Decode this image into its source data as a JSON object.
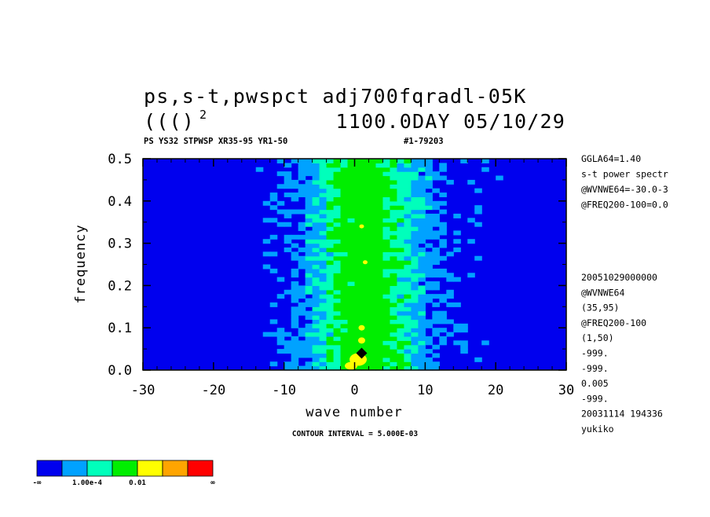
{
  "header": {
    "title_line1": "ps,s-t,pwspct adj700fqradl-05K",
    "title_line2_left": "((()",
    "title_line2_sup": "2",
    "title_line2_right": "1100.0DAY 05/10/29",
    "subtitle_left": "PS YS32 STPWSP XR35-95 YR1-50",
    "subtitle_right": "#1-79203"
  },
  "side_info": {
    "top": [
      "GGLA64=1.40",
      "s-t power spectr",
      "@WVNWE64=-30.0-3",
      "@FREQ200-100=0.0"
    ],
    "bottom": [
      "20051029000000",
      "@WVNWE64",
      "(35,95)",
      "@FREQ200-100",
      "(1,50)",
      "-999.",
      "-999.",
      "0.005",
      "-999.",
      "20031114 194336",
      "yukiko"
    ]
  },
  "footer": {
    "contour_interval": "CONTOUR INTERVAL = 5.000E-03"
  },
  "colors": {
    "level0": "#0000ee",
    "level1": "#00a2ff",
    "level2": "#00ffbb",
    "level3": "#00ee00",
    "level4": "#ffff00",
    "level5": "#ffa500",
    "level6": "#ff0000",
    "max_marker": "#000000"
  },
  "colorbar": {
    "labels": [
      "-∞",
      "1.00e-4",
      "0.01",
      "∞"
    ]
  },
  "chart_data": {
    "type": "heatmap",
    "xlabel": "wave number",
    "ylabel": "frequency",
    "xlim": [
      -30,
      30
    ],
    "ylim": [
      0,
      0.5
    ],
    "xticks": [
      -30,
      -20,
      -10,
      0,
      10,
      20,
      30
    ],
    "xtick_labels": [
      "-30",
      "-20",
      "-10",
      "0",
      "10",
      "20",
      "30"
    ],
    "yticks": [
      0,
      0.1,
      0.2,
      0.3,
      0.4,
      0.5
    ],
    "ytick_labels": [
      "0.0",
      "0.1",
      "0.2",
      "0.3",
      "0.4",
      "0.5"
    ],
    "contour_interval": 0.005,
    "levels": [
      0.0001,
      0.005,
      0.01,
      0.015,
      0.02,
      0.025
    ],
    "peak": {
      "wavenumber": 1,
      "frequency": 0.04
    }
  }
}
